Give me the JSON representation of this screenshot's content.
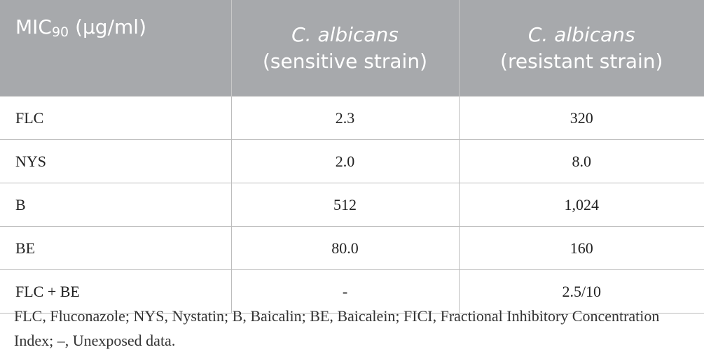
{
  "table": {
    "header": [
      {
        "main": "MIC",
        "subscript": "90",
        "unit": "(μg/ml)"
      },
      {
        "species": "C. albicans",
        "strain": "(sensitive strain)"
      },
      {
        "species": "C. albicans",
        "strain": "(resistant strain)"
      }
    ],
    "rows": [
      [
        "FLC",
        "2.3",
        "320"
      ],
      [
        "NYS",
        "2.0",
        "8.0"
      ],
      [
        "B",
        "512",
        "1,024"
      ],
      [
        "BE",
        "80.0",
        "160"
      ],
      [
        "FLC + BE",
        "-",
        "2.5/10"
      ]
    ]
  },
  "footnote": "FLC, Fluconazole; NYS, Nystatin; B, Baicalin; BE, Baicalein; FICI, Fractional Inhibitory Concentration Index; –, Unexposed data."
}
